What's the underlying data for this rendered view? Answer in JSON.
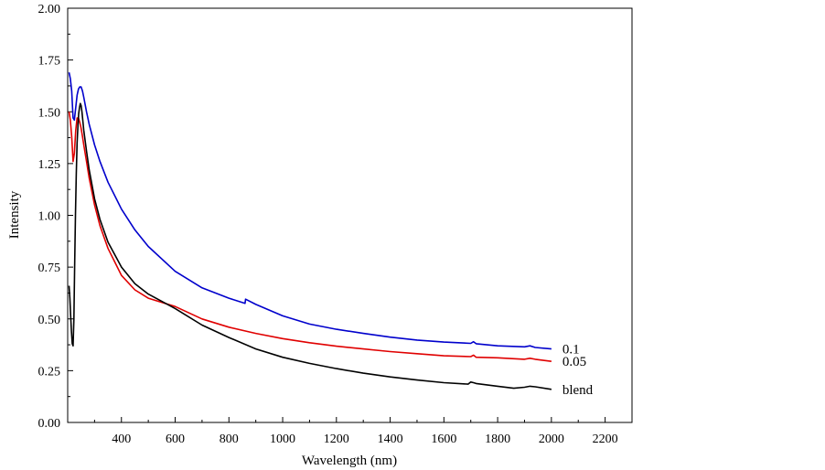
{
  "chart_data": {
    "type": "line",
    "title": "",
    "xlabel": "Wavelength (nm)",
    "ylabel": "Intensity",
    "xlim": [
      200,
      2300
    ],
    "ylim": [
      0.0,
      2.0
    ],
    "x_ticks": [
      400,
      600,
      800,
      1000,
      1200,
      1400,
      1600,
      1800,
      2000,
      2200
    ],
    "y_ticks": [
      0.0,
      0.25,
      0.5,
      0.75,
      1.0,
      1.25,
      1.5,
      1.75,
      2.0
    ],
    "y_tick_labels": [
      "0.00",
      "0.25",
      "0.50",
      "0.75",
      "1.00",
      "1.25",
      "1.50",
      "1.75",
      "2.00"
    ],
    "grid": false,
    "legend": "inline labels at right end of each curve",
    "series": [
      {
        "name": "0.1",
        "color": "#0000cc",
        "x": [
          205,
          210,
          215,
          220,
          225,
          230,
          235,
          240,
          245,
          250,
          255,
          260,
          270,
          280,
          300,
          320,
          350,
          400,
          450,
          500,
          600,
          700,
          800,
          860,
          862,
          900,
          1000,
          1100,
          1200,
          1300,
          1400,
          1500,
          1600,
          1700,
          1710,
          1720,
          1800,
          1900,
          1920,
          1940,
          2000
        ],
        "y": [
          1.69,
          1.66,
          1.6,
          1.47,
          1.46,
          1.52,
          1.58,
          1.61,
          1.62,
          1.62,
          1.6,
          1.57,
          1.5,
          1.44,
          1.34,
          1.26,
          1.16,
          1.03,
          0.93,
          0.85,
          0.73,
          0.65,
          0.6,
          0.575,
          0.595,
          0.57,
          0.515,
          0.475,
          0.45,
          0.43,
          0.412,
          0.398,
          0.388,
          0.382,
          0.39,
          0.38,
          0.37,
          0.365,
          0.37,
          0.362,
          0.355
        ]
      },
      {
        "name": "0.05",
        "color": "#e00000",
        "x": [
          205,
          210,
          215,
          220,
          225,
          230,
          235,
          240,
          245,
          250,
          255,
          260,
          270,
          280,
          300,
          320,
          350,
          400,
          450,
          500,
          600,
          700,
          800,
          900,
          1000,
          1100,
          1200,
          1300,
          1400,
          1500,
          1600,
          1700,
          1710,
          1720,
          1800,
          1900,
          1920,
          1940,
          2000
        ],
        "y": [
          1.5,
          1.46,
          1.38,
          1.26,
          1.3,
          1.41,
          1.47,
          1.47,
          1.45,
          1.42,
          1.38,
          1.34,
          1.26,
          1.18,
          1.05,
          0.95,
          0.84,
          0.71,
          0.64,
          0.6,
          0.56,
          0.5,
          0.46,
          0.43,
          0.405,
          0.385,
          0.368,
          0.355,
          0.342,
          0.332,
          0.322,
          0.318,
          0.325,
          0.315,
          0.312,
          0.305,
          0.31,
          0.305,
          0.295
        ]
      },
      {
        "name": "blend",
        "color": "#000000",
        "x": [
          205,
          208,
          211,
          214,
          217,
          220,
          223,
          226,
          229,
          232,
          235,
          238,
          241,
          244,
          247,
          250,
          253,
          256,
          260,
          265,
          270,
          280,
          300,
          320,
          350,
          400,
          450,
          500,
          600,
          700,
          800,
          900,
          1000,
          1100,
          1200,
          1300,
          1400,
          1500,
          1600,
          1690,
          1700,
          1710,
          1720,
          1800,
          1860,
          1900,
          1920,
          1940,
          2000
        ],
        "y": [
          0.66,
          0.6,
          0.52,
          0.44,
          0.38,
          0.37,
          0.5,
          0.75,
          1.0,
          1.2,
          1.35,
          1.43,
          1.49,
          1.52,
          1.54,
          1.53,
          1.5,
          1.46,
          1.41,
          1.36,
          1.31,
          1.22,
          1.08,
          0.98,
          0.87,
          0.75,
          0.67,
          0.62,
          0.55,
          0.47,
          0.41,
          0.355,
          0.315,
          0.285,
          0.26,
          0.238,
          0.22,
          0.205,
          0.192,
          0.185,
          0.195,
          0.192,
          0.188,
          0.175,
          0.165,
          0.17,
          0.175,
          0.172,
          0.16
        ]
      }
    ]
  }
}
